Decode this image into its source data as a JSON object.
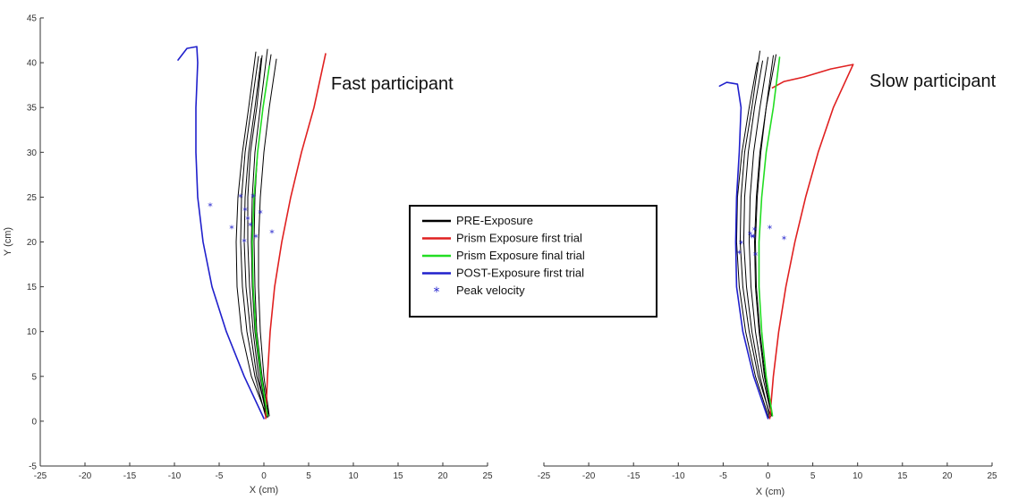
{
  "chart_data": [
    {
      "type": "line",
      "title": "Fast participant",
      "xlabel": "X (cm)",
      "ylabel": "Y (cm)",
      "xlim": [
        -25,
        25
      ],
      "ylim": [
        -5,
        45
      ],
      "xticks": [
        -25,
        -20,
        -15,
        -10,
        -5,
        0,
        5,
        10,
        15,
        20,
        25
      ],
      "yticks": [
        -5,
        0,
        5,
        10,
        15,
        20,
        25,
        30,
        35,
        40,
        45
      ],
      "series": [
        {
          "name": "PRE-Exposure",
          "color": "#000000",
          "trials": [
            {
              "x": [
                0.3,
                -0.6,
                -1.2,
                -1.6,
                -1.8,
                -1.8,
                -1.5,
                -0.8,
                -0.2
              ],
              "y": [
                0.5,
                5,
                10,
                15,
                20,
                25,
                30,
                35,
                40.8
              ]
            },
            {
              "x": [
                0.5,
                -0.2,
                -0.8,
                -1.0,
                -1.1,
                -1.0,
                -0.7,
                -0.1,
                0.8
              ],
              "y": [
                0.8,
                5,
                10,
                15,
                20,
                25,
                30,
                35,
                40.9
              ]
            },
            {
              "x": [
                0.2,
                -1.0,
                -1.9,
                -2.4,
                -2.6,
                -2.5,
                -2.1,
                -1.4,
                -0.6
              ],
              "y": [
                0.5,
                5,
                10,
                15,
                20,
                25,
                30,
                35,
                40.7
              ]
            },
            {
              "x": [
                0.6,
                0.0,
                -0.4,
                -0.6,
                -0.6,
                -0.4,
                0.0,
                0.6,
                1.4
              ],
              "y": [
                0.6,
                5,
                10,
                15,
                20,
                25,
                30,
                35,
                40.4
              ]
            },
            {
              "x": [
                0.4,
                -1.4,
                -2.5,
                -3.0,
                -3.1,
                -2.9,
                -2.4,
                -1.7,
                -0.9
              ],
              "y": [
                0.4,
                5,
                10,
                15,
                20,
                25,
                30,
                35,
                41.2
              ]
            },
            {
              "x": [
                0.3,
                -0.4,
                -1.0,
                -1.3,
                -1.4,
                -1.3,
                -1.0,
                -0.4,
                0.4
              ],
              "y": [
                0.6,
                5,
                10,
                15,
                20,
                25,
                30,
                35,
                41.5
              ]
            },
            {
              "x": [
                0.5,
                -0.8,
                -1.5,
                -2.0,
                -2.2,
                -2.1,
                -1.7,
                -1.0,
                -0.3
              ],
              "y": [
                0.5,
                5,
                10,
                15,
                20,
                25,
                30,
                35,
                40.5
              ]
            }
          ]
        },
        {
          "name": "Prism Exposure first trial",
          "color": "#e02020",
          "trials": [
            {
              "x": [
                0.2,
                0.4,
                0.7,
                1.2,
                2.0,
                3.0,
                4.2,
                5.6,
                6.9
              ],
              "y": [
                0.3,
                5,
                10,
                15,
                20,
                25,
                30,
                35,
                41
              ]
            }
          ]
        },
        {
          "name": "Prism Exposure final trial",
          "color": "#22dd22",
          "trials": [
            {
              "x": [
                0.4,
                -0.3,
                -0.9,
                -1.2,
                -1.3,
                -1.1,
                -0.7,
                -0.1,
                0.6
              ],
              "y": [
                0.6,
                5,
                10,
                15,
                20,
                25,
                30,
                35,
                39.6
              ]
            }
          ]
        },
        {
          "name": "POST-Exposure first trial",
          "color": "#2020cc",
          "trials": [
            {
              "x": [
                0.0,
                -2.2,
                -4.2,
                -5.8,
                -6.8,
                -7.4,
                -7.6,
                -7.6,
                -7.4,
                -7.5,
                -8.6,
                -9.6
              ],
              "y": [
                0.3,
                5,
                10,
                15,
                20,
                25,
                30,
                35,
                40,
                41.8,
                41.6,
                40.3
              ]
            }
          ]
        }
      ],
      "peak_velocity_label": "Peak velocity",
      "peak_velocity": {
        "x": [
          -6.0,
          -3.6,
          -2.2,
          -1.8,
          -2.6,
          -1.2,
          -0.9,
          -2.1,
          -0.4,
          -1.5,
          0.9
        ],
        "y": [
          24,
          21.5,
          20,
          22.5,
          25,
          25,
          20.5,
          23.5,
          23.2,
          21.8,
          21
        ]
      }
    },
    {
      "type": "line",
      "title": "Slow participant",
      "xlabel": "X (cm)",
      "ylabel": "",
      "xlim": [
        -25,
        25
      ],
      "ylim": [
        -5,
        45
      ],
      "xticks": [
        -25,
        -20,
        -15,
        -10,
        -5,
        0,
        5,
        10,
        15,
        20,
        25
      ],
      "series": [
        {
          "name": "PRE-Exposure",
          "color": "#000000",
          "trials": [
            {
              "x": [
                0.2,
                -0.9,
                -1.8,
                -2.4,
                -2.7,
                -2.6,
                -2.2,
                -1.5,
                -0.6
              ],
              "y": [
                0.5,
                5,
                10,
                15,
                20,
                25,
                30,
                35,
                40.2
              ]
            },
            {
              "x": [
                0.4,
                -0.6,
                -1.4,
                -1.9,
                -2.1,
                -2.0,
                -1.6,
                -0.9,
                0.0
              ],
              "y": [
                0.6,
                5,
                10,
                15,
                20,
                25,
                30,
                35,
                40.6
              ]
            },
            {
              "x": [
                0.1,
                -1.4,
                -2.5,
                -3.2,
                -3.5,
                -3.4,
                -2.9,
                -2.1,
                -1.2
              ],
              "y": [
                0.4,
                5,
                10,
                15,
                20,
                25,
                30,
                35,
                40.0
              ]
            },
            {
              "x": [
                0.5,
                -0.3,
                -0.9,
                -1.3,
                -1.4,
                -1.2,
                -0.8,
                -0.2,
                0.6
              ],
              "y": [
                0.7,
                5,
                10,
                15,
                20,
                25,
                30,
                35,
                40.8
              ]
            },
            {
              "x": [
                0.3,
                -1.1,
                -2.1,
                -2.8,
                -3.1,
                -3.0,
                -2.6,
                -1.8,
                -0.9
              ],
              "y": [
                0.5,
                5,
                10,
                15,
                20,
                25,
                30,
                35,
                41.3
              ]
            },
            {
              "x": [
                0.4,
                -0.4,
                -1.0,
                -1.4,
                -1.5,
                -1.3,
                -0.9,
                -0.2,
                0.9
              ],
              "y": [
                0.6,
                5,
                10,
                15,
                20,
                25,
                30,
                35,
                40.9
              ]
            }
          ]
        },
        {
          "name": "Prism Exposure first trial",
          "color": "#e02020",
          "trials": [
            {
              "x": [
                0.2,
                0.6,
                1.2,
                2.0,
                3.0,
                4.2,
                5.6,
                7.3,
                9.5,
                7.0,
                4.0,
                1.8,
                0.5
              ],
              "y": [
                0.3,
                5,
                10,
                15,
                20,
                25,
                30,
                35,
                39.8,
                39.3,
                38.4,
                37.9,
                37.2
              ]
            }
          ]
        },
        {
          "name": "Prism Exposure final trial",
          "color": "#22dd22",
          "trials": [
            {
              "x": [
                0.5,
                -0.2,
                -0.7,
                -1.0,
                -1.0,
                -0.7,
                -0.2,
                0.6,
                1.3
              ],
              "y": [
                0.6,
                5,
                10,
                15,
                20,
                25,
                30,
                35,
                40.6
              ]
            }
          ]
        },
        {
          "name": "POST-Exposure first trial",
          "color": "#2020cc",
          "trials": [
            {
              "x": [
                0.0,
                -1.6,
                -2.8,
                -3.5,
                -3.6,
                -3.5,
                -3.2,
                -3.0,
                -3.4,
                -4.6,
                -5.4
              ],
              "y": [
                0.3,
                5,
                10,
                15,
                20,
                25,
                30,
                35,
                37.6,
                37.8,
                37.4
              ]
            }
          ]
        }
      ],
      "peak_velocity_label": "Peak velocity",
      "peak_velocity": {
        "x": [
          -3.2,
          -3.0,
          -1.8,
          -1.6,
          -1.4,
          -1.5,
          -2.0,
          0.2,
          1.8
        ],
        "y": [
          18.7,
          19.8,
          20.5,
          20.5,
          18.5,
          21.3,
          20.8,
          21.5,
          20.3
        ]
      }
    }
  ],
  "legend": {
    "placement": "center",
    "entries": [
      {
        "label": "PRE-Exposure",
        "color": "#000000",
        "kind": "line"
      },
      {
        "label": "Prism Exposure first trial",
        "color": "#e02020",
        "kind": "line"
      },
      {
        "label": "Prism Exposure final trial",
        "color": "#22dd22",
        "kind": "line"
      },
      {
        "label": "POST-Exposure first trial",
        "color": "#2020cc",
        "kind": "line"
      },
      {
        "label": "Peak velocity",
        "color": "#2020cc",
        "kind": "marker"
      }
    ]
  }
}
